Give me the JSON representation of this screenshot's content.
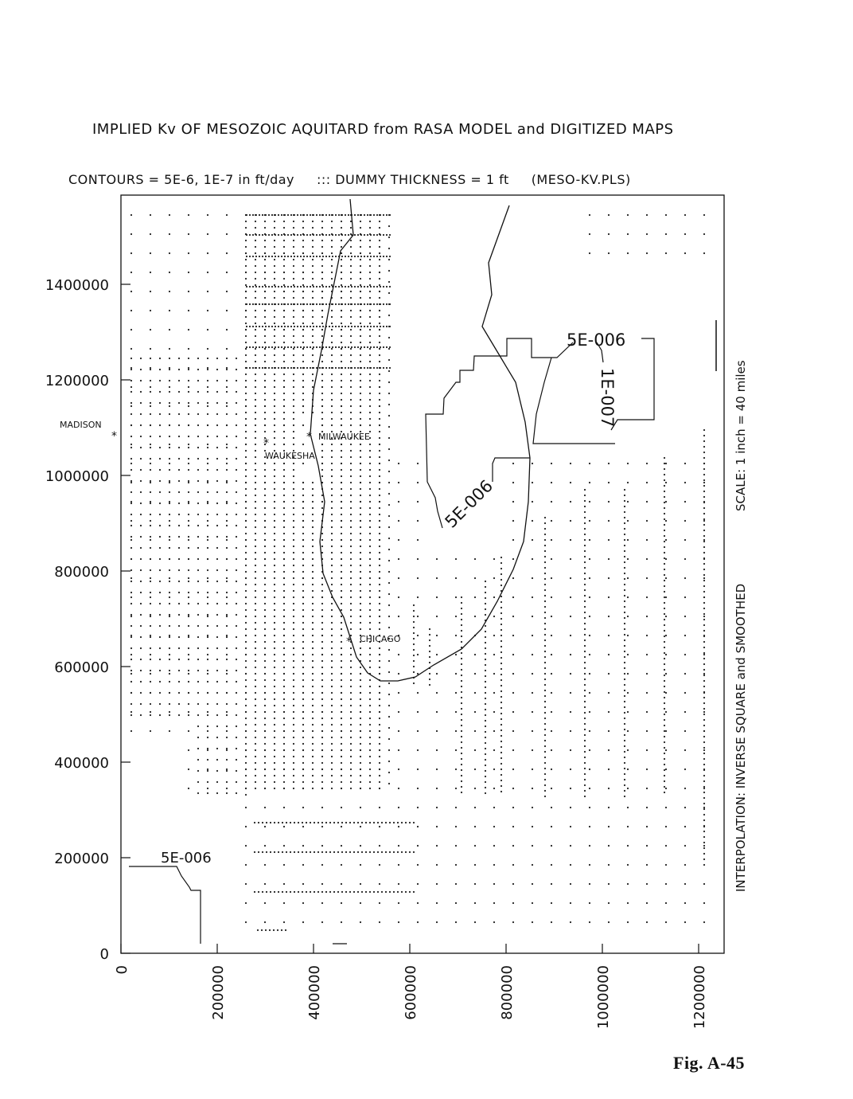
{
  "title": "IMPLIED Kv OF MESOZOIC AQUITARD from RASA MODEL and DIGITIZED MAPS",
  "subtitle": "CONTOURS = 5E-6, 1E-7 in ft/day     ::: DUMMY THICKNESS = 1 ft     (MESO-KV.PLS)",
  "y_ticks": [
    "0",
    "200000",
    "400000",
    "600000",
    "800000",
    "1000000",
    "1200000",
    "1400000"
  ],
  "x_ticks": [
    "0",
    "200000",
    "400000",
    "600000",
    "800000",
    "1000000",
    "1200000"
  ],
  "cities": {
    "madison": "MADISON",
    "milwaukee": "MILWAUKEE",
    "waukesha": "WAUKESHA",
    "chicago": "CHICAGO"
  },
  "contour_labels": {
    "upper_5e": "5E-006",
    "upper_1e": "1E-007",
    "middle_5e": "5E-006",
    "lower_5e": "5E-006"
  },
  "side_notes": {
    "interpolation": "INTERPOLATION: INVERSE SQUARE and SMOOTHED",
    "scale": "SCALE: 1 inch = 40 miles"
  },
  "figure_label": "Fig. A-45"
}
